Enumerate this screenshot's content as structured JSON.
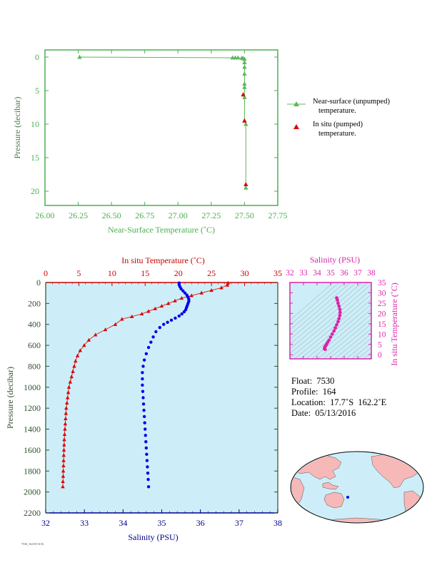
{
  "chart_data": [
    {
      "type": "line",
      "xlabel": "Near-Surface Temperature (˚C)",
      "ylabel": "Pressure (decibar)",
      "xlim": [
        26.0,
        27.75
      ],
      "ylim": [
        0,
        22
      ],
      "y_inverted": true,
      "x_ticks": [
        "26.00",
        "26.25",
        "26.50",
        "26.75",
        "27.00",
        "27.25",
        "27.50",
        "27.75"
      ],
      "y_ticks": [
        "0",
        "5",
        "10",
        "15",
        "20"
      ],
      "grid": false,
      "legend_position": "right",
      "color": "#4caf50",
      "series": [
        {
          "name": "Near-surface (unpumped) temperature.",
          "color": "#5cb85c",
          "points": [
            [
              26.26,
              0.0
            ],
            [
              27.41,
              0.1
            ],
            [
              27.43,
              0.1
            ],
            [
              27.45,
              0.1
            ],
            [
              27.48,
              0.15
            ],
            [
              27.49,
              0.2
            ],
            [
              27.5,
              0.3
            ],
            [
              27.5,
              0.8
            ],
            [
              27.5,
              1.5
            ],
            [
              27.5,
              2.5
            ],
            [
              27.5,
              4.0
            ],
            [
              27.5,
              4.5
            ],
            [
              27.5,
              6.0
            ],
            [
              27.5,
              9.5
            ],
            [
              27.51,
              10.0
            ],
            [
              27.51,
              19.5
            ]
          ]
        },
        {
          "name": "In situ (pumped) temperature.",
          "color": "#e00000",
          "points": [
            [
              27.49,
              5.6
            ],
            [
              27.5,
              9.5
            ],
            [
              27.51,
              19.0
            ]
          ]
        }
      ]
    },
    {
      "type": "line",
      "ylabel": "Pressure (decibar)",
      "ylim": [
        0,
        2200
      ],
      "y_inverted": true,
      "y_ticks": [
        "0",
        "200",
        "400",
        "600",
        "800",
        "1000",
        "1200",
        "1400",
        "1600",
        "1800",
        "2000",
        "2200"
      ],
      "background": "#cdeef8",
      "temperature_axis": {
        "label": "In situ Temperature (˚C)",
        "xlim": [
          0,
          35
        ],
        "ticks": [
          "0",
          "5",
          "10",
          "15",
          "20",
          "25",
          "30",
          "35"
        ],
        "color": "#cc0000"
      },
      "salinity_axis": {
        "label": "Salinity (PSU)",
        "xlim": [
          32,
          38
        ],
        "ticks": [
          "32",
          "33",
          "34",
          "35",
          "36",
          "37",
          "38"
        ],
        "color": "#00008b"
      },
      "series": [
        {
          "name": "In situ Temperature",
          "color": "#dd0000",
          "points": [
            [
              27.5,
              5
            ],
            [
              27.4,
              25
            ],
            [
              26.5,
              50
            ],
            [
              25.0,
              75
            ],
            [
              23.5,
              100
            ],
            [
              22.0,
              125
            ],
            [
              20.5,
              150
            ],
            [
              19.5,
              175
            ],
            [
              18.5,
              200
            ],
            [
              17.5,
              225
            ],
            [
              16.5,
              250
            ],
            [
              15.5,
              275
            ],
            [
              14.5,
              300
            ],
            [
              13.0,
              325
            ],
            [
              11.5,
              350
            ],
            [
              10.5,
              400
            ],
            [
              9.0,
              450
            ],
            [
              7.5,
              500
            ],
            [
              6.5,
              550
            ],
            [
              5.8,
              600
            ],
            [
              5.2,
              650
            ],
            [
              4.8,
              700
            ],
            [
              4.5,
              750
            ],
            [
              4.3,
              800
            ],
            [
              4.1,
              850
            ],
            [
              3.9,
              900
            ],
            [
              3.7,
              950
            ],
            [
              3.5,
              1000
            ],
            [
              3.4,
              1050
            ],
            [
              3.3,
              1100
            ],
            [
              3.2,
              1150
            ],
            [
              3.1,
              1200
            ],
            [
              3.05,
              1250
            ],
            [
              3.0,
              1300
            ],
            [
              2.95,
              1350
            ],
            [
              2.9,
              1400
            ],
            [
              2.85,
              1450
            ],
            [
              2.8,
              1500
            ],
            [
              2.78,
              1550
            ],
            [
              2.75,
              1600
            ],
            [
              2.72,
              1650
            ],
            [
              2.7,
              1700
            ],
            [
              2.68,
              1750
            ],
            [
              2.65,
              1800
            ],
            [
              2.63,
              1850
            ],
            [
              2.6,
              1900
            ],
            [
              2.58,
              1950
            ]
          ]
        },
        {
          "name": "Salinity",
          "color": "#0000ee",
          "points": [
            [
              35.45,
              5
            ],
            [
              35.45,
              20
            ],
            [
              35.47,
              40
            ],
            [
              35.5,
              60
            ],
            [
              35.55,
              80
            ],
            [
              35.6,
              100
            ],
            [
              35.65,
              120
            ],
            [
              35.68,
              140
            ],
            [
              35.7,
              160
            ],
            [
              35.7,
              180
            ],
            [
              35.68,
              200
            ],
            [
              35.66,
              220
            ],
            [
              35.64,
              240
            ],
            [
              35.62,
              260
            ],
            [
              35.58,
              280
            ],
            [
              35.52,
              300
            ],
            [
              35.45,
              320
            ],
            [
              35.35,
              340
            ],
            [
              35.25,
              360
            ],
            [
              35.15,
              380
            ],
            [
              35.05,
              400
            ],
            [
              34.95,
              430
            ],
            [
              34.85,
              470
            ],
            [
              34.78,
              520
            ],
            [
              34.72,
              570
            ],
            [
              34.66,
              620
            ],
            [
              34.6,
              680
            ],
            [
              34.55,
              740
            ],
            [
              34.52,
              800
            ],
            [
              34.5,
              860
            ],
            [
              34.5,
              920
            ],
            [
              34.5,
              980
            ],
            [
              34.51,
              1040
            ],
            [
              34.52,
              1100
            ],
            [
              34.53,
              1160
            ],
            [
              34.54,
              1220
            ],
            [
              34.55,
              1280
            ],
            [
              34.56,
              1340
            ],
            [
              34.57,
              1400
            ],
            [
              34.58,
              1460
            ],
            [
              34.59,
              1520
            ],
            [
              34.6,
              1580
            ],
            [
              34.61,
              1640
            ],
            [
              34.62,
              1700
            ],
            [
              34.63,
              1760
            ],
            [
              34.64,
              1820
            ],
            [
              34.65,
              1880
            ],
            [
              34.66,
              1950
            ]
          ]
        }
      ]
    },
    {
      "type": "scatter",
      "xlabel": "Salinity (PSU)",
      "ylabel": "In situ Temperature (˚C)",
      "xlim": [
        32,
        38
      ],
      "ylim": [
        -2,
        35
      ],
      "x_ticks": [
        "32",
        "33",
        "34",
        "35",
        "36",
        "37",
        "38"
      ],
      "y_ticks": [
        "0",
        "5",
        "10",
        "15",
        "20",
        "25",
        "30",
        "35"
      ],
      "color": "#dd22aa",
      "points": [
        [
          35.45,
          27.5
        ],
        [
          35.5,
          26.5
        ],
        [
          35.55,
          25.0
        ],
        [
          35.62,
          23.5
        ],
        [
          35.68,
          22.0
        ],
        [
          35.7,
          20.5
        ],
        [
          35.68,
          19.0
        ],
        [
          35.62,
          17.5
        ],
        [
          35.55,
          16.0
        ],
        [
          35.45,
          14.5
        ],
        [
          35.35,
          13.0
        ],
        [
          35.25,
          11.5
        ],
        [
          35.12,
          10.0
        ],
        [
          35.0,
          8.5
        ],
        [
          34.88,
          7.0
        ],
        [
          34.78,
          6.0
        ],
        [
          34.7,
          5.0
        ],
        [
          34.62,
          4.2
        ],
        [
          34.57,
          3.6
        ],
        [
          34.55,
          3.1
        ],
        [
          34.56,
          2.8
        ],
        [
          34.6,
          2.6
        ]
      ]
    }
  ],
  "legend": {
    "near_surface_l1": "Near-surface (unpumped)",
    "near_surface_l2": "temperature.",
    "in_situ_l1": "In situ (pumped)",
    "in_situ_l2": "temperature."
  },
  "float_info": {
    "float": "Float:  7530",
    "profile": "Profile:  164",
    "location": "Location:  17.7˚S  162.2˚E",
    "date": "Date:  05/13/2016"
  },
  "footer_text": "7530_164 05/13/16"
}
